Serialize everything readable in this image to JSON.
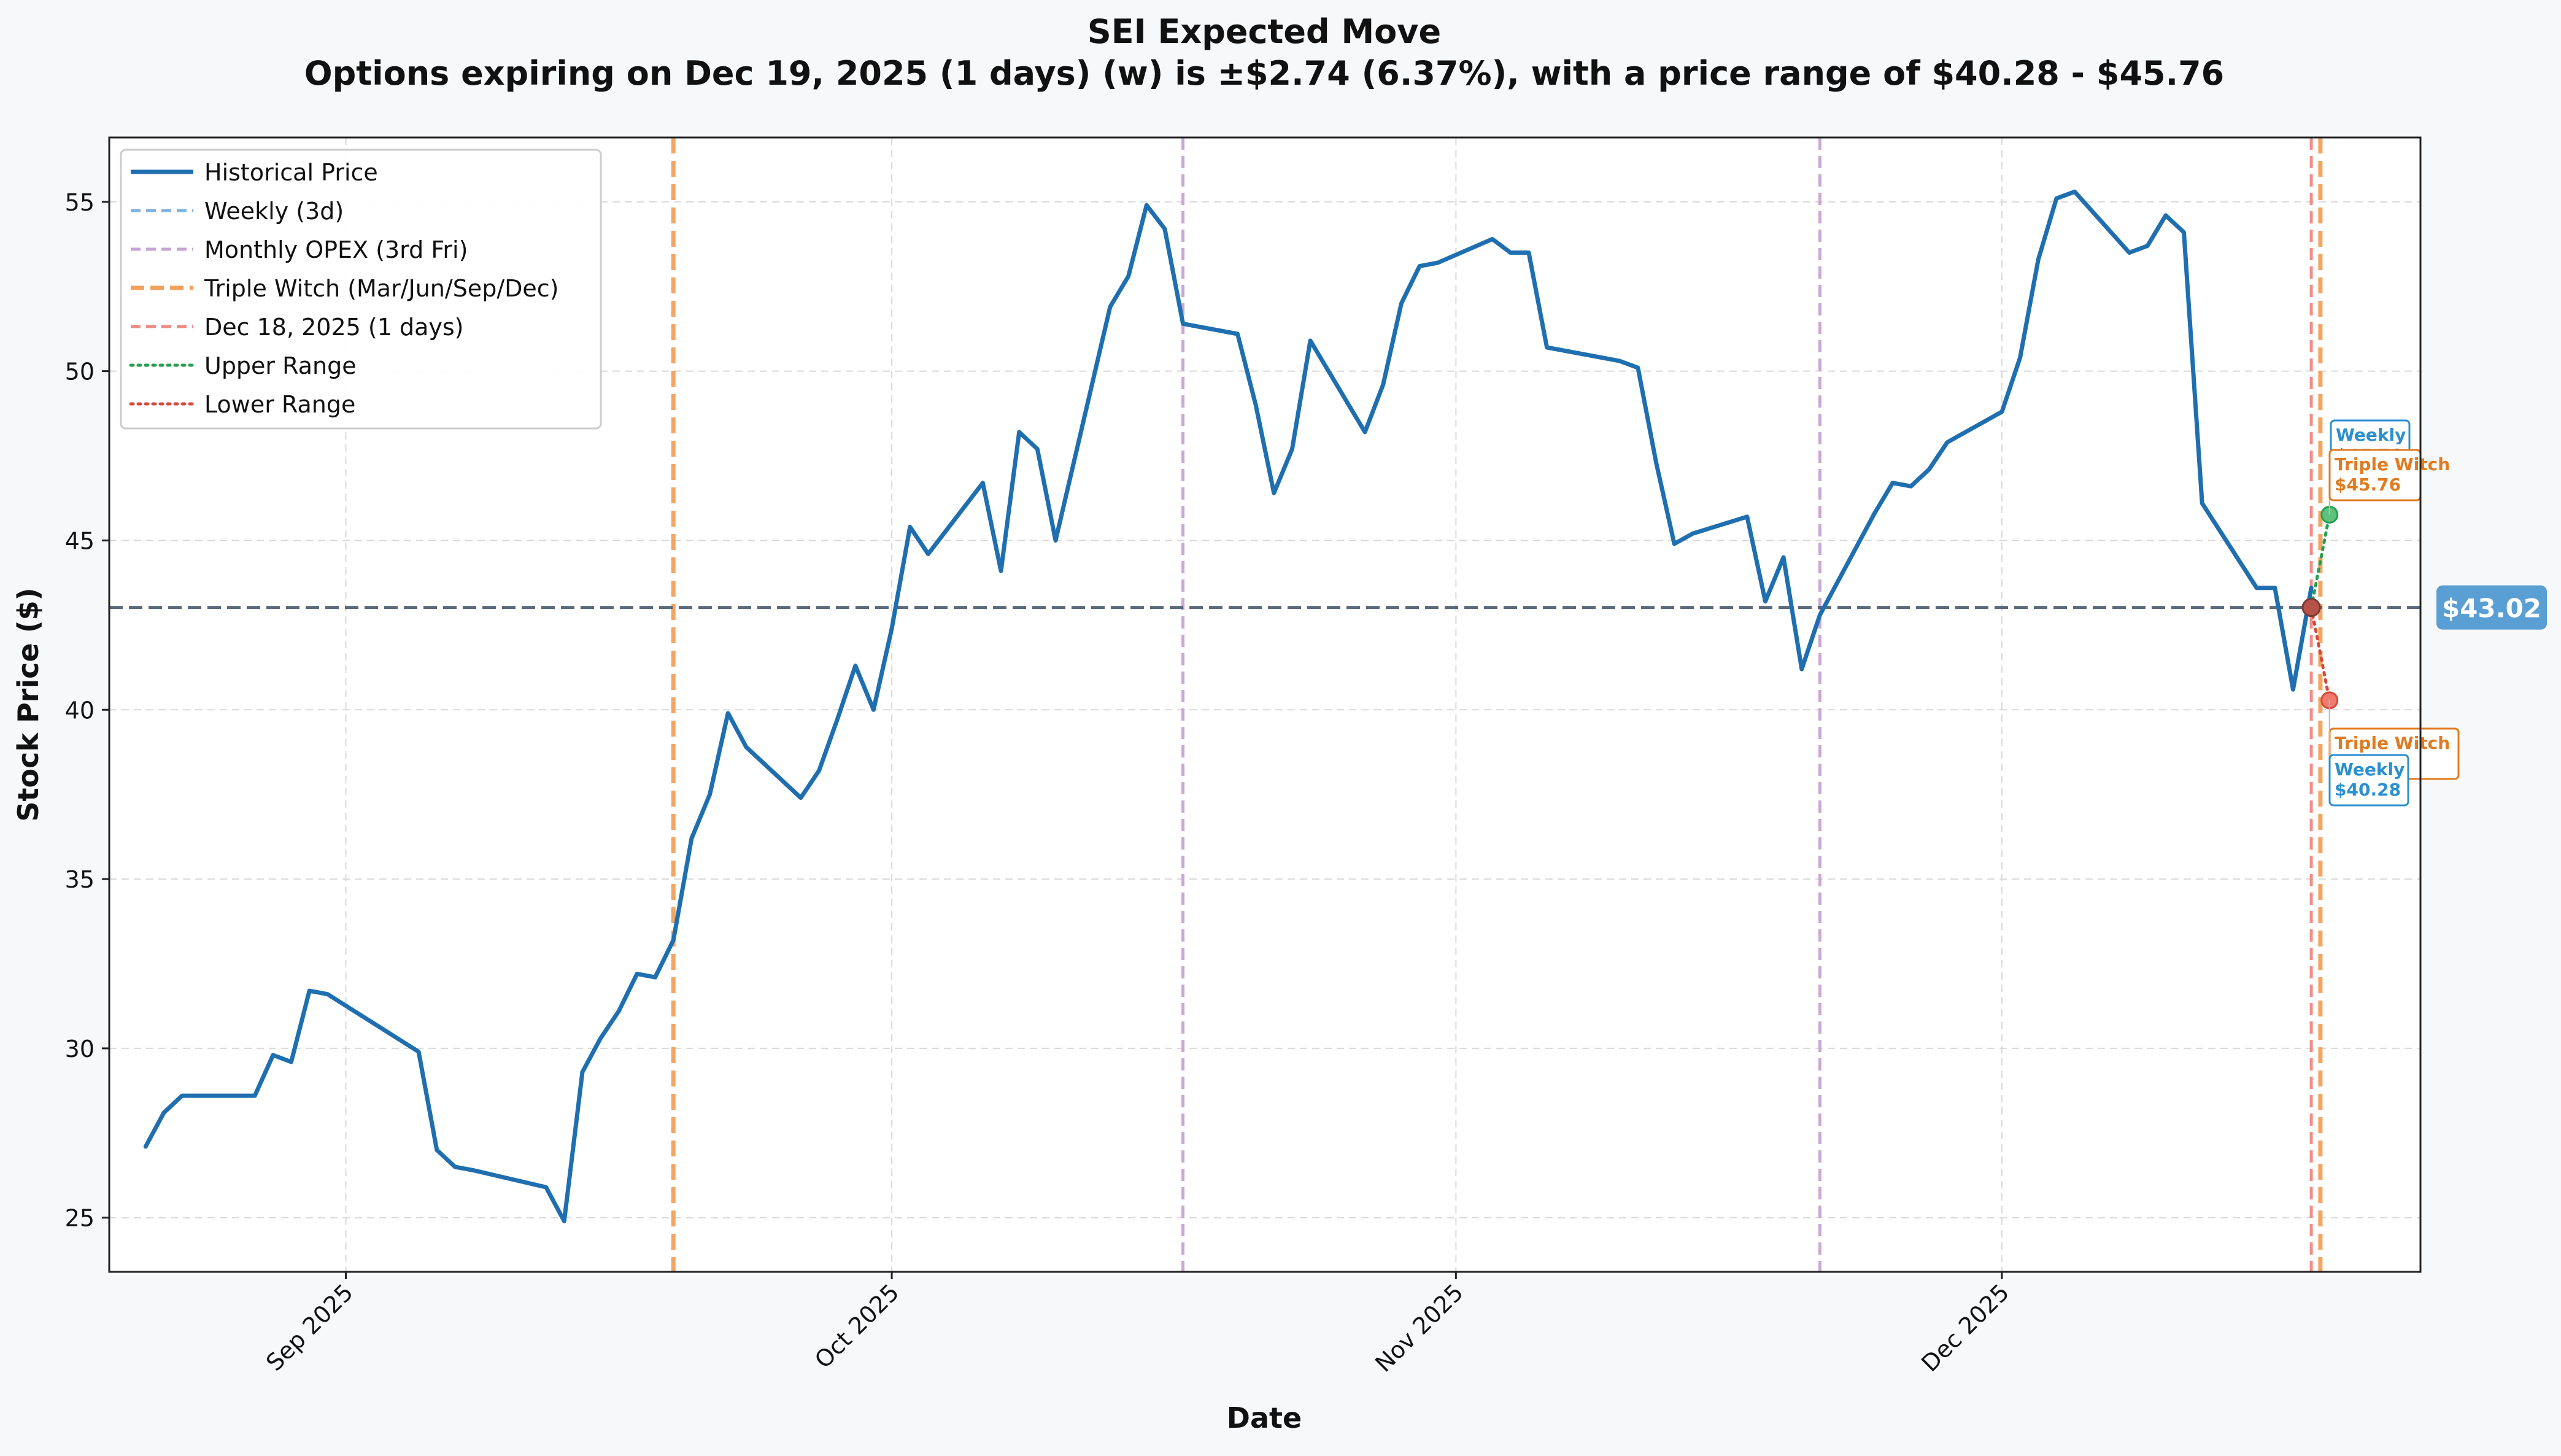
{
  "chart_data": {
    "type": "line",
    "title": "SEI Expected Move",
    "subtitle": "Options expiring on Dec 19, 2025 (1 days) (w) is ±$2.74 (6.37%), with a price range of $40.28 - $45.76",
    "xlabel": "Date",
    "ylabel": "Stock Price ($)",
    "xlim": [
      "2025-08-19",
      "2025-12-24"
    ],
    "ylim": [
      23.4,
      56.9
    ],
    "grid": true,
    "legend_position": "top-left",
    "x_ticks": [
      {
        "date": "2025-09-01",
        "label": "Sep 2025"
      },
      {
        "date": "2025-10-01",
        "label": "Oct 2025"
      },
      {
        "date": "2025-11-01",
        "label": "Nov 2025"
      },
      {
        "date": "2025-12-01",
        "label": "Dec 2025"
      }
    ],
    "y_ticks": [
      25,
      30,
      35,
      40,
      45,
      50,
      55
    ],
    "legend": [
      {
        "label": "Historical Price",
        "color": "#1f6fb0",
        "style": "solid"
      },
      {
        "label": "Weekly (3d)",
        "color": "#7fb2de",
        "style": "dashed"
      },
      {
        "label": "Monthly OPEX (3rd Fri)",
        "color": "#c9a3d4",
        "style": "dashed"
      },
      {
        "label": "Triple Witch (Mar/Jun/Sep/Dec)",
        "color": "#f2a25c",
        "style": "dashed-thick"
      },
      {
        "label": "Dec 18, 2025 (1 days)",
        "color": "#ee8a85",
        "style": "dashed"
      },
      {
        "label": "Upper Range",
        "color": "#27a050",
        "style": "dotted"
      },
      {
        "label": "Lower Range",
        "color": "#d64a3a",
        "style": "dotted"
      }
    ],
    "series": [
      {
        "name": "Historical Price",
        "color": "#1f6fb0",
        "x": [
          "2025-08-21",
          "2025-08-22",
          "2025-08-23",
          "2025-08-27",
          "2025-08-28",
          "2025-08-29",
          "2025-08-30",
          "2025-08-31",
          "2025-09-05",
          "2025-09-06",
          "2025-09-07",
          "2025-09-08",
          "2025-09-12",
          "2025-09-13",
          "2025-09-14",
          "2025-09-15",
          "2025-09-16",
          "2025-09-17",
          "2025-09-18",
          "2025-09-19",
          "2025-09-20",
          "2025-09-21",
          "2025-09-22",
          "2025-09-23",
          "2025-09-26",
          "2025-09-27",
          "2025-09-28",
          "2025-09-29",
          "2025-09-30",
          "2025-10-01",
          "2025-10-02",
          "2025-10-03",
          "2025-10-06",
          "2025-10-07",
          "2025-10-08",
          "2025-10-09",
          "2025-10-10",
          "2025-10-13",
          "2025-10-14",
          "2025-10-15",
          "2025-10-16",
          "2025-10-17",
          "2025-10-20",
          "2025-10-21",
          "2025-10-22",
          "2025-10-23",
          "2025-10-24",
          "2025-10-27",
          "2025-10-28",
          "2025-10-29",
          "2025-10-30",
          "2025-10-31",
          "2025-11-03",
          "2025-11-04",
          "2025-11-05",
          "2025-11-06",
          "2025-11-07",
          "2025-11-10",
          "2025-11-11",
          "2025-11-12",
          "2025-11-13",
          "2025-11-14",
          "2025-11-17",
          "2025-11-18",
          "2025-11-19",
          "2025-11-20",
          "2025-11-21",
          "2025-11-24",
          "2025-11-25",
          "2025-11-26",
          "2025-11-27",
          "2025-11-28",
          "2025-12-01",
          "2025-12-02",
          "2025-12-03",
          "2025-12-04",
          "2025-12-05",
          "2025-12-08",
          "2025-12-09",
          "2025-12-10",
          "2025-12-11",
          "2025-12-12",
          "2025-12-15",
          "2025-12-16",
          "2025-12-17",
          "2025-12-18"
        ],
        "y": [
          27.1,
          28.1,
          28.6,
          28.6,
          29.8,
          29.6,
          31.7,
          31.6,
          29.9,
          27.0,
          26.5,
          26.4,
          25.9,
          24.9,
          29.3,
          30.3,
          31.1,
          32.2,
          32.1,
          33.2,
          36.2,
          37.5,
          39.9,
          38.9,
          37.4,
          38.2,
          39.7,
          41.3,
          40.0,
          42.4,
          45.4,
          44.6,
          46.7,
          44.1,
          48.2,
          47.7,
          45.0,
          51.9,
          52.8,
          54.9,
          54.2,
          51.4,
          51.1,
          49.0,
          46.4,
          47.7,
          50.9,
          48.2,
          49.6,
          52.0,
          53.1,
          53.2,
          53.9,
          53.5,
          53.5,
          50.7,
          50.6,
          50.3,
          50.1,
          47.3,
          44.9,
          45.2,
          45.7,
          43.2,
          44.5,
          41.2,
          42.8,
          45.8,
          46.7,
          46.6,
          47.1,
          47.9,
          48.8,
          50.4,
          53.3,
          55.1,
          55.3,
          53.5,
          53.7,
          54.6,
          54.1,
          46.1,
          43.6,
          43.6,
          40.6,
          43.6
        ]
      }
    ],
    "current_price": {
      "value": 43.02,
      "label": "$43.02",
      "color": "#5a9fd4"
    },
    "vertical_lines": [
      {
        "date": "2025-09-19",
        "kind": "Triple Witch",
        "color": "#f2a25c"
      },
      {
        "date": "2025-10-17",
        "kind": "Monthly OPEX",
        "color": "#c9a3d4"
      },
      {
        "date": "2025-11-21",
        "kind": "Monthly OPEX",
        "color": "#c9a3d4"
      },
      {
        "date": "2025-12-18",
        "kind": "Dec 18, 2025 (1 days)",
        "color": "#ee8a85"
      },
      {
        "date": "2025-12-18.5",
        "kind": "Triple Witch",
        "color": "#f2a25c"
      }
    ],
    "expected_move": {
      "start": {
        "date": "2025-12-18",
        "price": 43.02
      },
      "upper": {
        "date": "2025-12-19",
        "price": 45.76
      },
      "lower": {
        "date": "2025-12-19",
        "price": 40.28
      }
    },
    "annotations": [
      {
        "title": "Weekly",
        "value": "$45.76",
        "color": "#2b8fd0",
        "anchor": "upper"
      },
      {
        "title": "Triple Witch",
        "value": "$45.76",
        "color": "#e07b20",
        "anchor": "upper"
      },
      {
        "title": "Triple Witch",
        "value": "$40.28",
        "color": "#e07b20",
        "anchor": "lower"
      },
      {
        "title": "Weekly",
        "value": "$40.28",
        "color": "#2b8fd0",
        "anchor": "lower"
      }
    ]
  }
}
